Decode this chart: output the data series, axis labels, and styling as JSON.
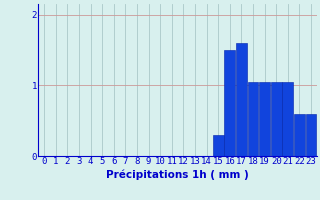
{
  "hours": [
    0,
    1,
    2,
    3,
    4,
    5,
    6,
    7,
    8,
    9,
    10,
    11,
    12,
    13,
    14,
    15,
    16,
    17,
    18,
    19,
    20,
    21,
    22,
    23
  ],
  "values": [
    0,
    0,
    0,
    0,
    0,
    0,
    0,
    0,
    0,
    0,
    0,
    0,
    0,
    0,
    0,
    0.3,
    1.5,
    1.6,
    1.05,
    1.05,
    1.05,
    1.05,
    0.6,
    0.6
  ],
  "bar_color": "#1144dd",
  "bar_edge_color": "#0022aa",
  "background_color": "#d8f0ee",
  "grid_color": "#aac8c8",
  "axis_color": "#0000cc",
  "text_color": "#0000cc",
  "xlabel": "Précipitations 1h ( mm )",
  "ylim": [
    0,
    2.15
  ],
  "yticks": [
    0,
    1,
    2
  ],
  "xlim": [
    -0.5,
    23.5
  ],
  "xlabel_fontsize": 7.5,
  "tick_fontsize": 6.5
}
